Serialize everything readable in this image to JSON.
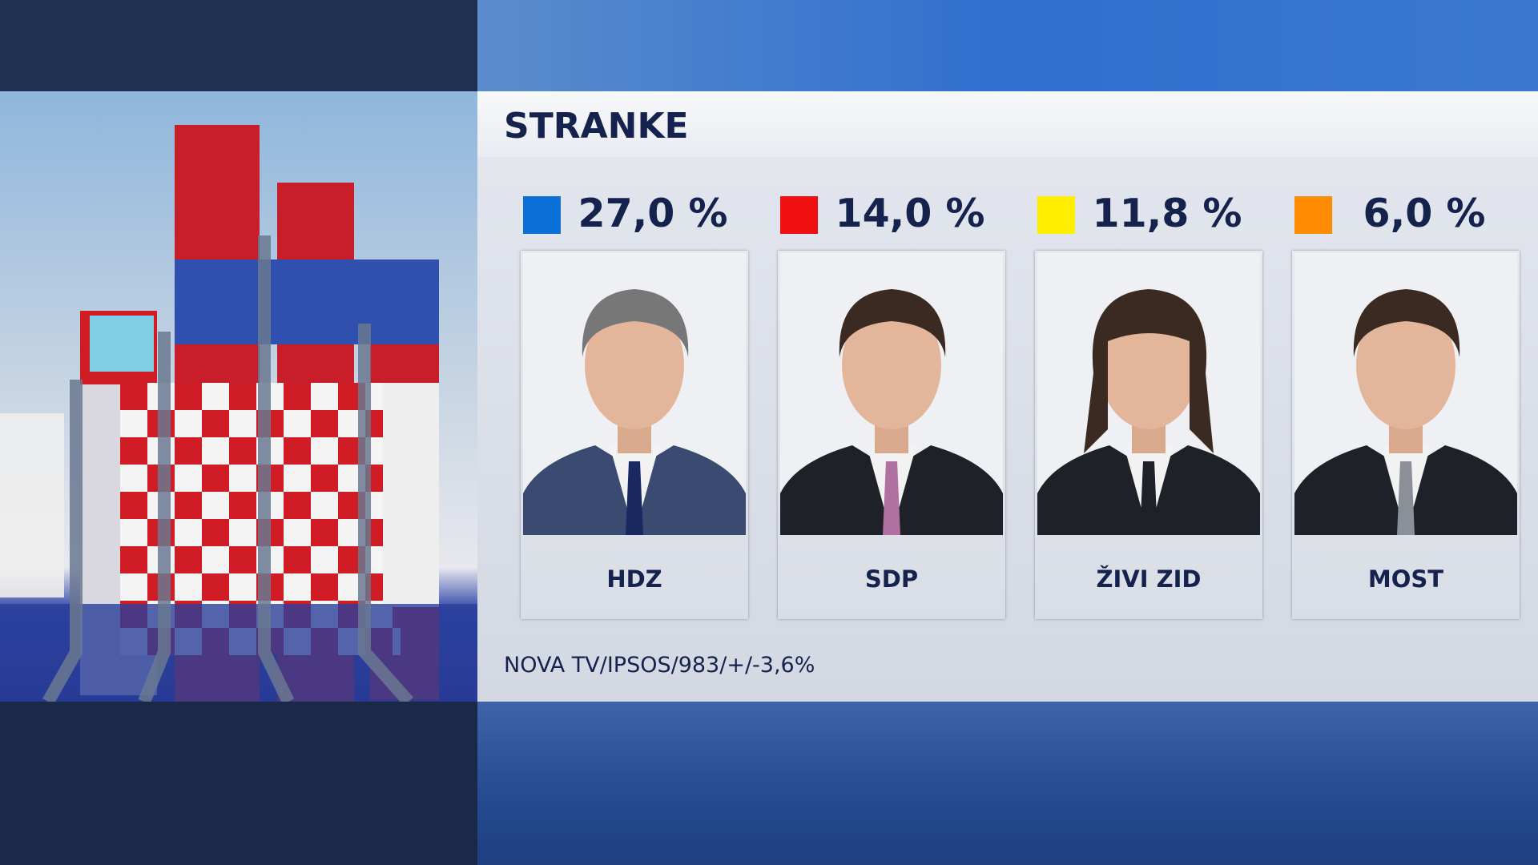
{
  "header": {
    "title": "STRANKE"
  },
  "parties": [
    {
      "name": "HDZ",
      "color": "#0a6fd6",
      "result": "27,0 %"
    },
    {
      "name": "SDP",
      "color": "#f01010",
      "result": "14,0 %"
    },
    {
      "name": "ŽIVI ZID",
      "color": "#ffee00",
      "result": "11,8 %"
    },
    {
      "name": "MOST",
      "color": "#ff8c00",
      "result": "6,0 %"
    }
  ],
  "source": "NOVA TV/IPSOS/983/+/-3,6%"
}
